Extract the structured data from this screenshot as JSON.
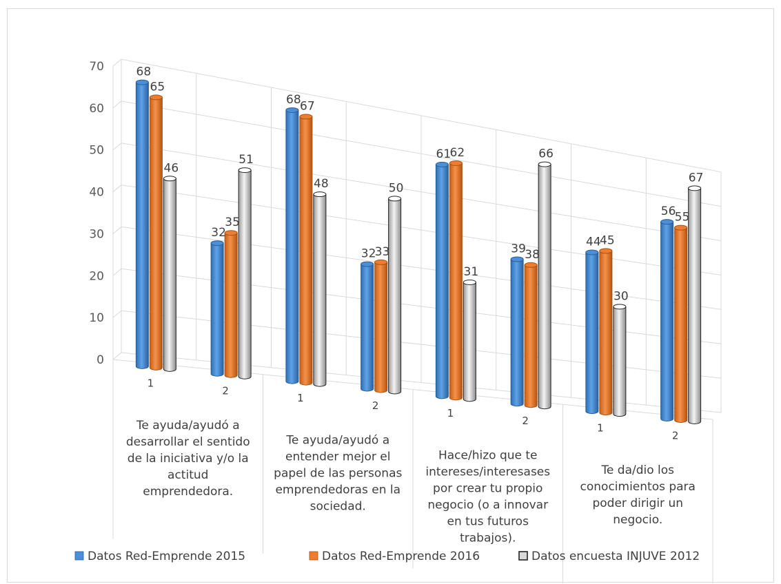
{
  "chart_data": {
    "type": "bar",
    "variant": "3d-clustered-column",
    "title": "",
    "ylim": [
      0,
      70
    ],
    "y_ticks": [
      "0",
      "10",
      "20",
      "30",
      "40",
      "50",
      "60",
      "70"
    ],
    "categories": [
      "1",
      "2",
      "1",
      "2",
      "1",
      "2",
      "1",
      "2"
    ],
    "groups": [
      {
        "lines": [
          "Te ayuda/ayudó a",
          "desarrollar el sentido",
          "de la iniciativa y/o la",
          "actitud",
          "emprendedora."
        ]
      },
      {
        "lines": [
          "Te ayuda/ayudó a",
          "entender mejor el",
          "papel de las personas",
          "emprendedoras en la",
          "sociedad."
        ]
      },
      {
        "lines": [
          "Hace/hizo que te",
          "intereses/interesases",
          "por crear tu propio",
          "negocio (o a innovar",
          "en tus futuros",
          "trabajos)."
        ]
      },
      {
        "lines": [
          "Te da/dio los",
          "conocimientos para",
          "poder dirigir un",
          "negocio."
        ]
      }
    ],
    "series": [
      {
        "name": "Datos Red-Emprende 2015",
        "color": "#4a8fd8",
        "values": [
          68,
          32,
          68,
          32,
          61,
          39,
          44,
          56
        ]
      },
      {
        "name": "Datos Red-Emprende 2016",
        "color": "#ed7d31",
        "values": [
          65,
          35,
          67,
          33,
          62,
          38,
          45,
          55
        ]
      },
      {
        "name": "Datos encuesta INJUVE 2012",
        "color": "#d9d9d9",
        "values": [
          46,
          51,
          48,
          50,
          31,
          66,
          30,
          67
        ]
      }
    ],
    "grid": true,
    "legend_position": "bottom"
  }
}
